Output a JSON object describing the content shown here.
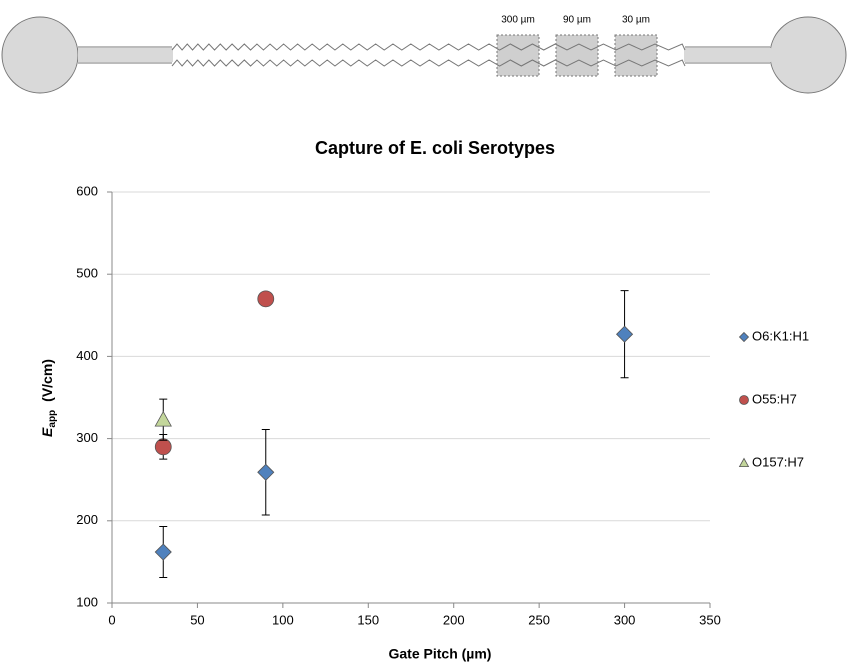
{
  "diagram": {
    "labels": [
      "300 µm",
      "90 µm",
      "30 µm"
    ]
  },
  "chart_data": {
    "type": "scatter",
    "title": "Capture of E. coli Serotypes",
    "ylabel": {
      "symbol": "E",
      "subscript": "app",
      "unit": "(V/cm)"
    },
    "xlabel": "Gate Pitch (µm)",
    "xlim": [
      0,
      350
    ],
    "xticks": [
      0,
      50,
      100,
      150,
      200,
      250,
      300,
      350
    ],
    "ylim": [
      100,
      600
    ],
    "yticks": [
      100,
      200,
      300,
      400,
      500,
      600
    ],
    "grid": true,
    "legend": "right",
    "series": [
      {
        "name": "O6:K1:H1",
        "color": "#4f81bd",
        "marker": "diamond",
        "x": [
          30,
          90,
          300
        ],
        "values": [
          162,
          259,
          427
        ],
        "errors": [
          31,
          52,
          53
        ]
      },
      {
        "name": "O55:H7",
        "color": "#c0504d",
        "marker": "circle",
        "x": [
          30,
          90
        ],
        "values": [
          290,
          470
        ],
        "errors": [
          15,
          5
        ]
      },
      {
        "name": "O157:H7",
        "color": "#c3d69b",
        "marker": "triangle",
        "x": [
          30
        ],
        "values": [
          323
        ],
        "errors": [
          25
        ]
      }
    ]
  }
}
